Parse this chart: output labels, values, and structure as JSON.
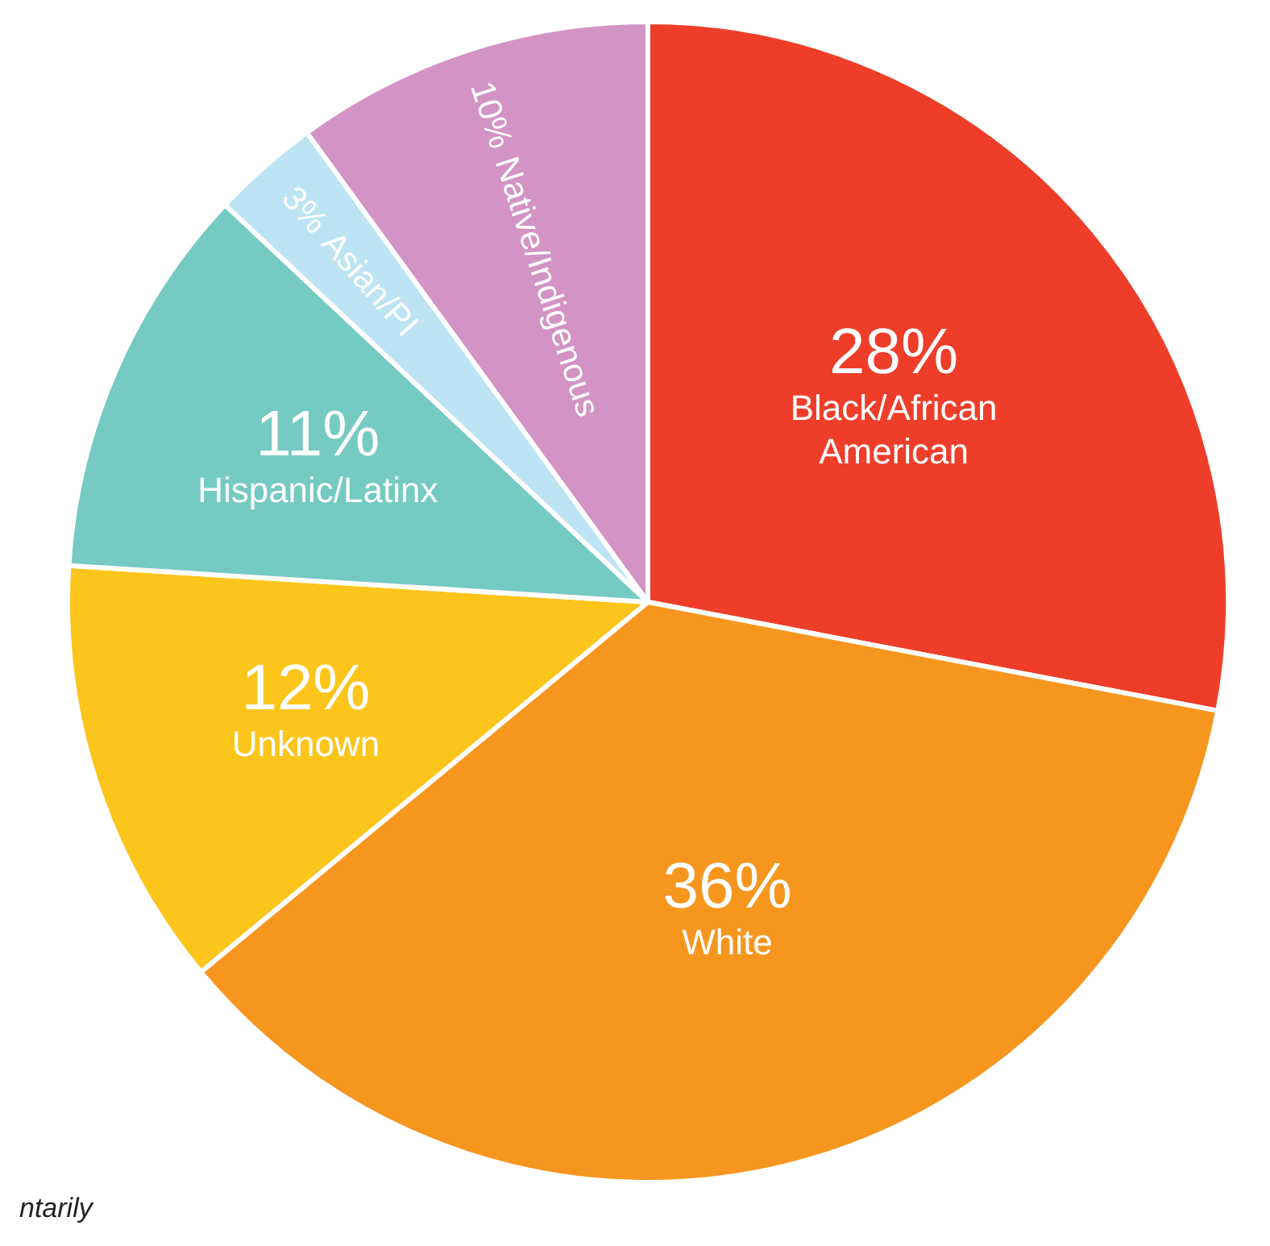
{
  "chart_data": {
    "type": "pie",
    "categories": [
      "Black/African American",
      "White",
      "Unknown",
      "Hispanic/Latinx",
      "Asian/PI",
      "Native/Indigenous"
    ],
    "values": [
      28,
      36,
      12,
      11,
      3,
      10
    ],
    "colors": [
      "#ee3e2a",
      "#f7961f",
      "#fcc51c",
      "#75cac2",
      "#bde4f3",
      "#d393c3"
    ],
    "value_labels": [
      "28%",
      "36%",
      "12%",
      "11%",
      "3%",
      "10%"
    ],
    "legend": false,
    "annotations": [
      "ntarily"
    ]
  }
}
